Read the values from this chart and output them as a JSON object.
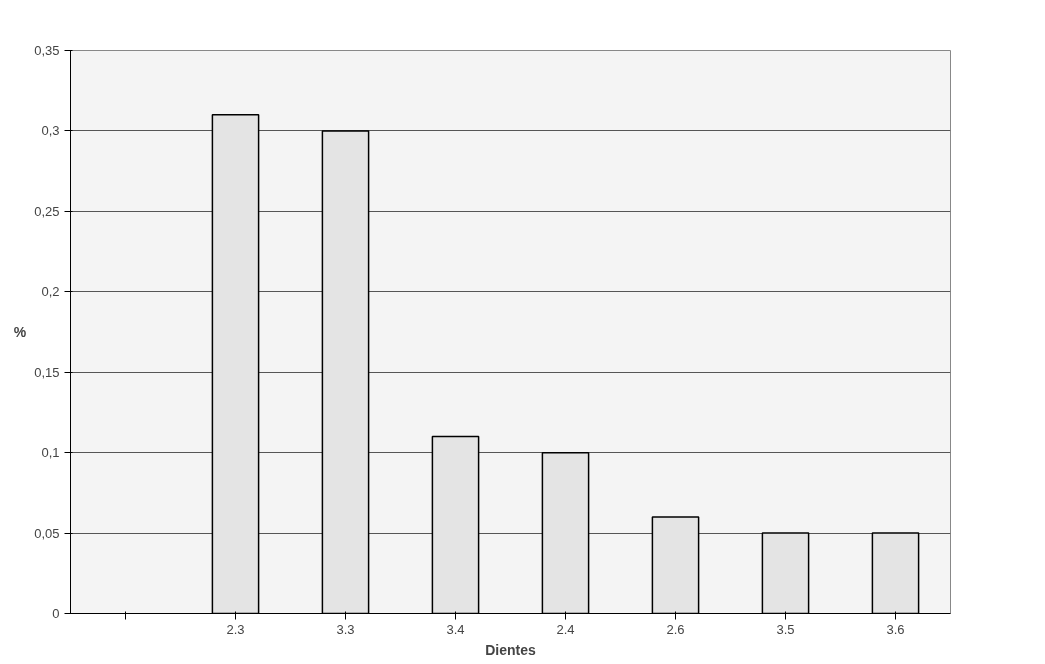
{
  "chart_data": {
    "type": "bar",
    "xlabel": "Dientes",
    "ylabel": "%",
    "categories": [
      null,
      "2.3",
      "3.3",
      "3.4",
      "2.4",
      "2.6",
      "3.5",
      "3.6"
    ],
    "values": [
      null,
      0.31,
      0.3,
      0.11,
      0.1,
      0.06,
      0.05,
      0.05
    ],
    "color": "#e4e4e4",
    "ylim": [
      0,
      0.35
    ],
    "yticks": [
      0,
      {
        "value": 0.05,
        "label": "0,05"
      },
      {
        "value": 0.1,
        "label": "0,1"
      },
      {
        "value": 0.15,
        "label": "0,15"
      },
      {
        "value": 0.2,
        "label": "0,2"
      },
      {
        "value": 0.25,
        "label": "0,25"
      },
      {
        "value": 0.3,
        "label": "0,3"
      },
      {
        "value": 0.35,
        "label": "0,35"
      }
    ],
    "grid": "y"
  }
}
